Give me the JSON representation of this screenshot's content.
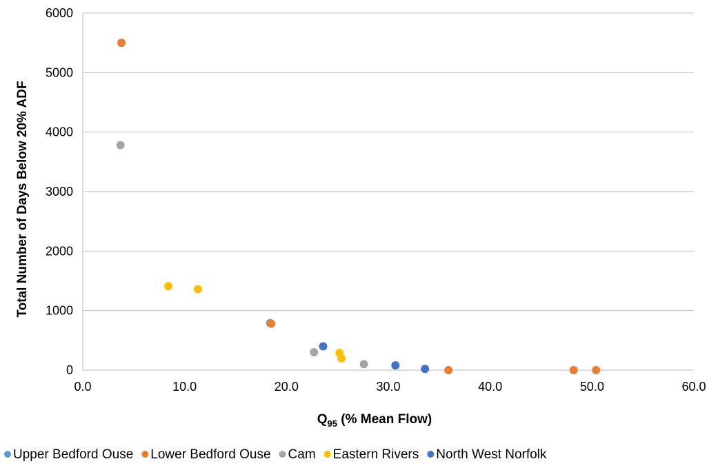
{
  "chart_data": {
    "type": "scatter",
    "title": "",
    "xlabel": {
      "main": "Q",
      "sub": "95",
      "rest": " (% Mean Flow)"
    },
    "ylabel": "Total Number of Days Below 20% ADF",
    "xlim": [
      0,
      60
    ],
    "ylim": [
      0,
      6000
    ],
    "x_ticks": [
      "0.0",
      "10.0",
      "20.0",
      "30.0",
      "40.0",
      "50.0",
      "60.0"
    ],
    "y_ticks": [
      "0",
      "1000",
      "2000",
      "3000",
      "4000",
      "5000",
      "6000"
    ],
    "grid": "horizontal",
    "legend": "bottom",
    "series": [
      {
        "name": "Upper Bedford Ouse",
        "color": "#5B9BD5",
        "points": [
          [
            18.4,
            790
          ]
        ]
      },
      {
        "name": "Lower Bedford Ouse",
        "color": "#ED7D31",
        "points": [
          [
            3.8,
            5500
          ],
          [
            18.5,
            780
          ],
          [
            35.9,
            0
          ],
          [
            48.2,
            0
          ],
          [
            50.4,
            0
          ]
        ]
      },
      {
        "name": "Cam",
        "color": "#A5A5A5",
        "points": [
          [
            3.7,
            3780
          ],
          [
            22.7,
            300
          ],
          [
            27.6,
            100
          ]
        ]
      },
      {
        "name": "Eastern Rivers",
        "color": "#FFC000",
        "points": [
          [
            8.4,
            1410
          ],
          [
            11.3,
            1360
          ],
          [
            25.2,
            290
          ],
          [
            25.4,
            200
          ]
        ]
      },
      {
        "name": "North West Norfolk",
        "color": "#4472C4",
        "points": [
          [
            23.6,
            400
          ],
          [
            30.7,
            80
          ],
          [
            33.6,
            20
          ]
        ]
      }
    ]
  }
}
